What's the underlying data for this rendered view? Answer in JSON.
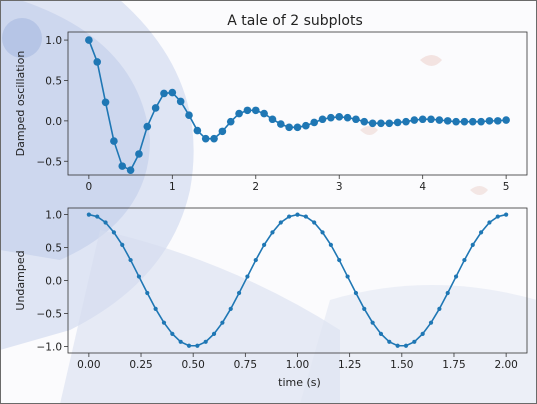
{
  "figure": {
    "title": "A tale of 2 subplots",
    "colors": {
      "line": "#1f77b4",
      "axes": "#333333",
      "text": "#222222"
    }
  },
  "chart_data": [
    {
      "type": "line",
      "title": "A tale of 2 subplots",
      "xlabel": "",
      "ylabel": "Damped oscillation",
      "xlim": [
        -0.25,
        5.25
      ],
      "ylim": [
        -0.67,
        1.1
      ],
      "xticks": [
        0,
        1,
        2,
        3,
        4,
        5
      ],
      "xtick_labels": [
        "0",
        "1",
        "2",
        "3",
        "4",
        "5"
      ],
      "yticks": [
        -0.5,
        0.0,
        0.5,
        1.0
      ],
      "ytick_labels": [
        "−0.5",
        "0.0",
        "0.5",
        "1.0"
      ],
      "markers": "circle",
      "series": [
        {
          "x": [
            0.0,
            0.1,
            0.2,
            0.3,
            0.4,
            0.5,
            0.6,
            0.7,
            0.8,
            0.9,
            1.0,
            1.1,
            1.2,
            1.3,
            1.4,
            1.5,
            1.6,
            1.7,
            1.8,
            1.9,
            2.0,
            2.1,
            2.2,
            2.3,
            2.4,
            2.5,
            2.6,
            2.7,
            2.8,
            2.9,
            3.0,
            3.1,
            3.2,
            3.3,
            3.4,
            3.5,
            3.6,
            3.7,
            3.8,
            3.9,
            4.0,
            4.1,
            4.2,
            4.3,
            4.4,
            4.5,
            4.6,
            4.7,
            4.8,
            4.9,
            5.0
          ],
          "y": [
            1.0,
            0.73,
            0.23,
            -0.25,
            -0.56,
            -0.61,
            -0.41,
            -0.07,
            0.16,
            0.34,
            0.35,
            0.24,
            0.07,
            -0.12,
            -0.22,
            -0.22,
            -0.13,
            -0.01,
            0.09,
            0.13,
            0.13,
            0.09,
            0.02,
            -0.04,
            -0.08,
            -0.08,
            -0.06,
            -0.02,
            0.02,
            0.04,
            0.05,
            0.04,
            0.02,
            -0.01,
            -0.03,
            -0.03,
            -0.03,
            -0.02,
            -0.01,
            0.01,
            0.02,
            0.02,
            0.01,
            0.0,
            -0.01,
            -0.01,
            -0.01,
            -0.01,
            0.0,
            0.0,
            0.01
          ]
        }
      ]
    },
    {
      "type": "line",
      "title": "",
      "xlabel": "time (s)",
      "ylabel": "Undamped",
      "xlim": [
        -0.1,
        2.1
      ],
      "ylim": [
        -1.1,
        1.1
      ],
      "xticks": [
        0.0,
        0.25,
        0.5,
        0.75,
        1.0,
        1.25,
        1.5,
        1.75,
        2.0
      ],
      "xtick_labels": [
        "0.00",
        "0.25",
        "0.50",
        "0.75",
        "1.00",
        "1.25",
        "1.50",
        "1.75",
        "2.00"
      ],
      "yticks": [
        -1.0,
        -0.5,
        0.0,
        0.5,
        1.0
      ],
      "ytick_labels": [
        "−1.0",
        "−0.5",
        "0.0",
        "0.5",
        "1.0"
      ],
      "markers": "dot",
      "series": [
        {
          "x": [
            0.0,
            0.04,
            0.08,
            0.12,
            0.16,
            0.2,
            0.24,
            0.28,
            0.32,
            0.36,
            0.4,
            0.44,
            0.48,
            0.52,
            0.56,
            0.6,
            0.64,
            0.68,
            0.72,
            0.76,
            0.8,
            0.84,
            0.88,
            0.92,
            0.96,
            1.0,
            1.04,
            1.08,
            1.12,
            1.16,
            1.2,
            1.24,
            1.28,
            1.32,
            1.36,
            1.4,
            1.44,
            1.48,
            1.52,
            1.56,
            1.6,
            1.64,
            1.68,
            1.72,
            1.76,
            1.8,
            1.84,
            1.88,
            1.92,
            1.96,
            2.0
          ],
          "y": [
            1.0,
            0.97,
            0.88,
            0.73,
            0.54,
            0.31,
            0.06,
            -0.19,
            -0.43,
            -0.64,
            -0.81,
            -0.93,
            -0.99,
            -0.99,
            -0.93,
            -0.81,
            -0.64,
            -0.43,
            -0.19,
            0.06,
            0.31,
            0.54,
            0.73,
            0.88,
            0.97,
            1.0,
            0.97,
            0.88,
            0.73,
            0.54,
            0.31,
            0.06,
            -0.19,
            -0.43,
            -0.64,
            -0.81,
            -0.93,
            -0.99,
            -0.99,
            -0.93,
            -0.81,
            -0.64,
            -0.43,
            -0.19,
            0.06,
            0.31,
            0.54,
            0.73,
            0.88,
            0.97,
            1.0
          ]
        }
      ]
    }
  ]
}
